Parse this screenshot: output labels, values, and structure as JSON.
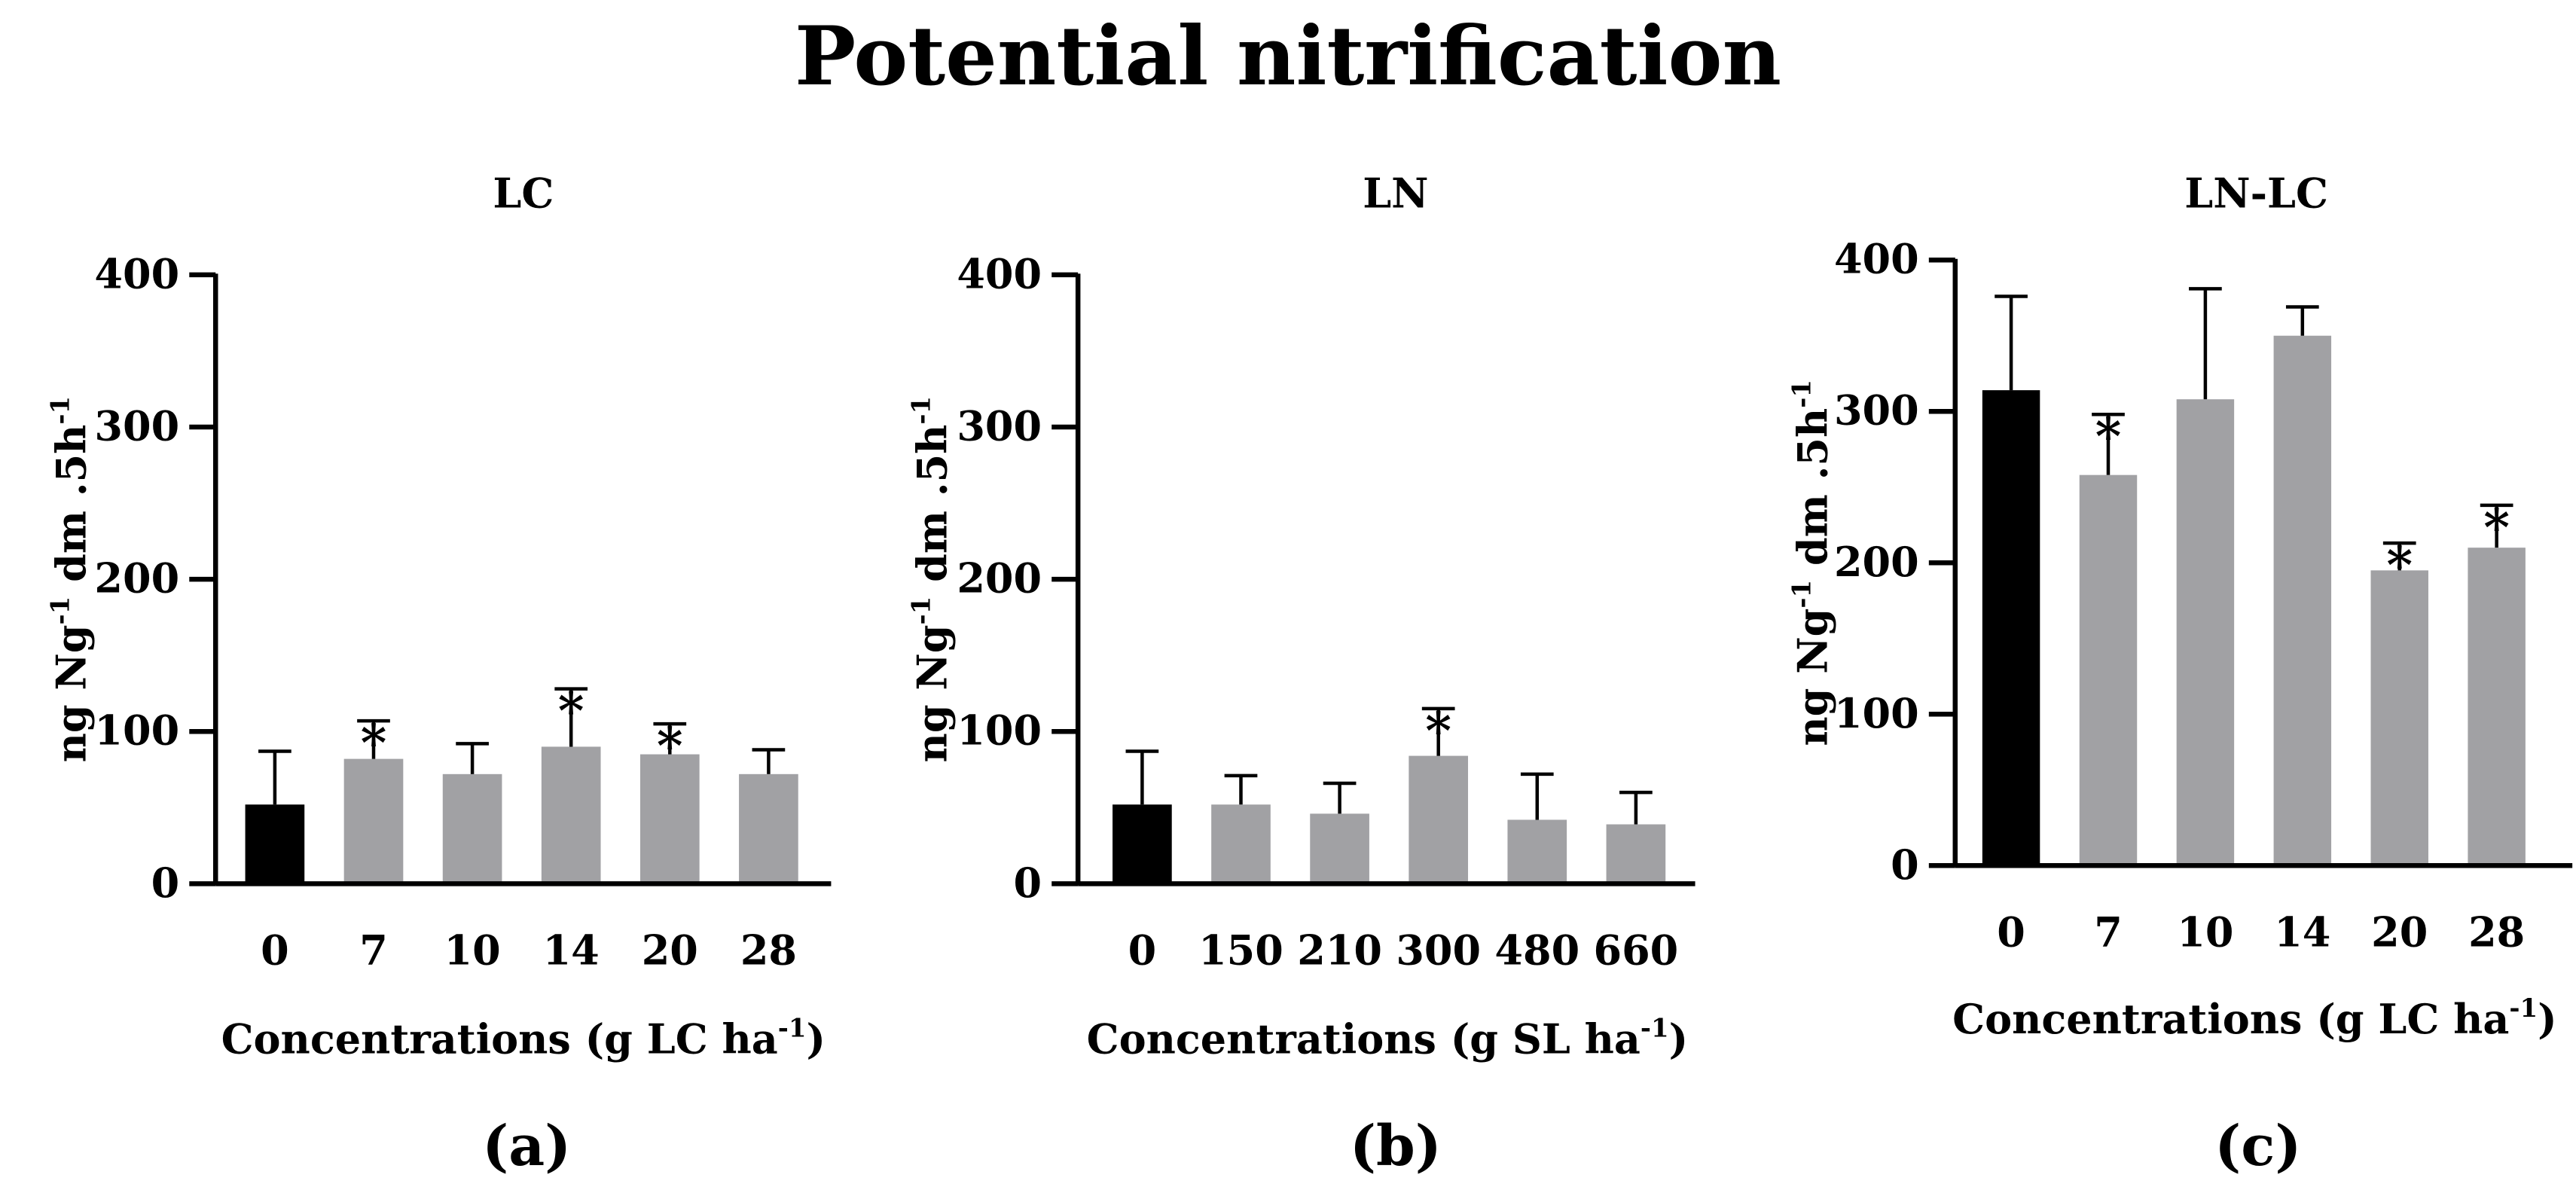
{
  "title": "Potential nitrification",
  "chart_data": [
    {
      "type": "bar",
      "panel_label": "(a)",
      "title": "LC",
      "categories": [
        "0",
        "7",
        "10",
        "14",
        "20",
        "28"
      ],
      "values": [
        52,
        82,
        72,
        90,
        85,
        72
      ],
      "errors": [
        35,
        25,
        20,
        38,
        20,
        16
      ],
      "significant": [
        false,
        true,
        false,
        true,
        true,
        false
      ],
      "significance_marker": "*",
      "bar_colors": [
        "#000000",
        "#a1a1a4",
        "#a1a1a4",
        "#a1a1a4",
        "#a1a1a4",
        "#a1a1a4"
      ],
      "xlabel": "Concentrations (g LC ha",
      "xlabel_sup": "-1",
      "xlabel_end": ")",
      "ylabel": "ng Ng",
      "ylabel_sup1": "-1",
      "ylabel_mid": " dm .5h",
      "ylabel_sup2": "-1",
      "ylim": [
        0,
        400
      ],
      "yticks": [
        0,
        100,
        200,
        300,
        400
      ],
      "ytick_labels": [
        "0",
        "100",
        "200",
        "300",
        "400"
      ]
    },
    {
      "type": "bar",
      "panel_label": "(b)",
      "title": "LN",
      "categories": [
        "0",
        "150",
        "210",
        "300",
        "480",
        "660"
      ],
      "values": [
        52,
        52,
        46,
        84,
        42,
        39
      ],
      "errors": [
        35,
        19,
        20,
        31,
        30,
        21
      ],
      "significant": [
        false,
        false,
        false,
        true,
        false,
        false
      ],
      "significance_marker": "*",
      "bar_colors": [
        "#000000",
        "#a1a1a4",
        "#a1a1a4",
        "#a1a1a4",
        "#a1a1a4",
        "#a1a1a4"
      ],
      "xlabel": "Concentrations (g SL ha",
      "xlabel_sup": "-1",
      "xlabel_end": ")",
      "ylabel": "ng Ng",
      "ylabel_sup1": "-1",
      "ylabel_mid": " dm .5h",
      "ylabel_sup2": "-1",
      "ylim": [
        0,
        400
      ],
      "yticks": [
        0,
        100,
        200,
        300,
        400
      ],
      "ytick_labels": [
        "0",
        "100",
        "200",
        "300",
        "400"
      ]
    },
    {
      "type": "bar",
      "panel_label": "(c)",
      "title": "LN-LC",
      "categories": [
        "0",
        "7",
        "10",
        "14",
        "20",
        "28"
      ],
      "values": [
        314,
        258,
        308,
        350,
        195,
        210
      ],
      "errors": [
        62,
        40,
        73,
        19,
        18,
        28
      ],
      "significant": [
        false,
        true,
        false,
        false,
        true,
        true
      ],
      "significance_marker": "*",
      "bar_colors": [
        "#000000",
        "#a1a1a4",
        "#a1a1a4",
        "#a1a1a4",
        "#a1a1a4",
        "#a1a1a4"
      ],
      "xlabel": "Concentrations (g LC ha",
      "xlabel_sup": "-1",
      "xlabel_end": ")",
      "ylabel": "ng Ng",
      "ylabel_sup1": "-1",
      "ylabel_mid": " dm .5h",
      "ylabel_sup2": "-1",
      "ylim": [
        0,
        400
      ],
      "yticks": [
        0,
        100,
        200,
        300,
        400
      ],
      "ytick_labels": [
        "0",
        "100",
        "200",
        "300",
        "400"
      ]
    }
  ]
}
